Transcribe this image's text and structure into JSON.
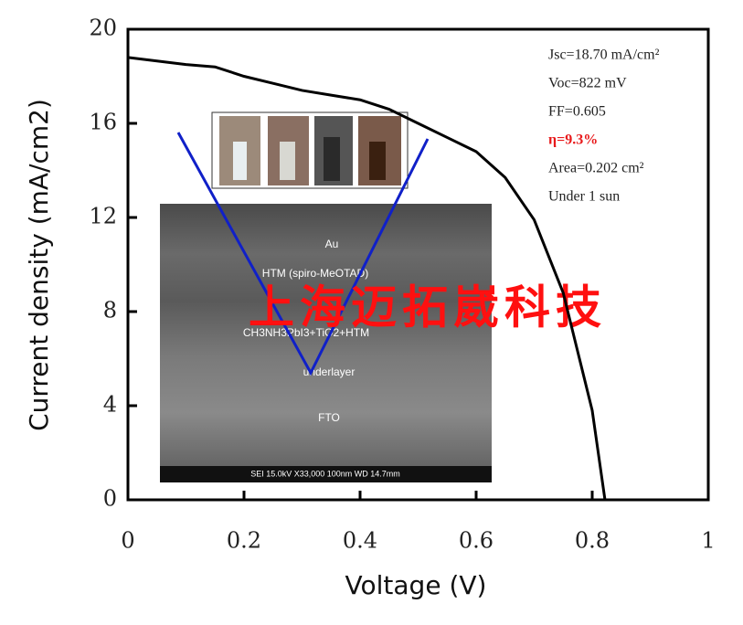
{
  "chart_data": {
    "type": "line",
    "xlabel": "Voltage (V)",
    "ylabel": "Current density (mA/cm2)",
    "x": [
      0,
      0.05,
      0.1,
      0.15,
      0.2,
      0.25,
      0.3,
      0.35,
      0.4,
      0.45,
      0.5,
      0.55,
      0.6,
      0.65,
      0.7,
      0.75,
      0.8,
      0.822
    ],
    "values": [
      18.8,
      18.65,
      18.5,
      18.4,
      18.0,
      17.7,
      17.4,
      17.2,
      17.0,
      16.6,
      16.0,
      15.4,
      14.8,
      13.7,
      11.9,
      8.8,
      3.8,
      0
    ],
    "color": "#000000",
    "xlim": [
      0,
      1
    ],
    "ylim": [
      0,
      20
    ],
    "xticks": [
      0,
      0.2,
      0.4,
      0.6,
      0.8,
      1
    ],
    "yticks": [
      0,
      4,
      8,
      12,
      16,
      20
    ],
    "annotations": [
      {
        "text": "Jsc=18.70 mA/cm²",
        "color": "#222222"
      },
      {
        "text": "Voc=822 mV",
        "color": "#222222"
      },
      {
        "text": "FF=0.605",
        "color": "#222222"
      },
      {
        "text": "η=9.3%",
        "color": "#e8191b"
      },
      {
        "text": "Area=0.202 cm²",
        "color": "#222222"
      },
      {
        "text": "Under 1 sun",
        "color": "#222222"
      }
    ],
    "inset_labels": [
      "Au",
      "HTM (spiro-MeOTAD)",
      "CH3NH3PbI3+TiO2+HTM",
      "underlayer",
      "FTO"
    ],
    "inset_scale_bar": "SEI     15.0kV   X33,000     100nm    WD 14.7mm",
    "watermark": "上海迈拓崴科技"
  }
}
